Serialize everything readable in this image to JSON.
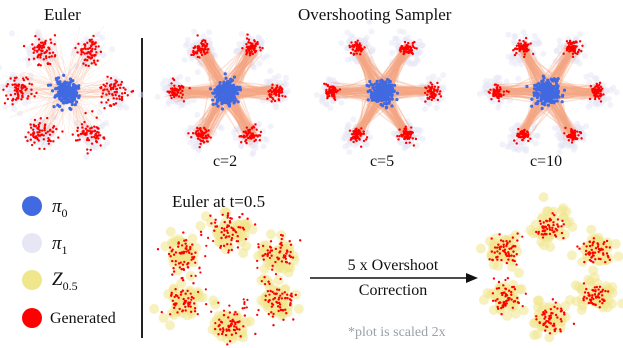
{
  "titles": {
    "euler": "Euler",
    "overshooting": "Overshooting Sampler",
    "euler_mid": "Euler at t=0.5"
  },
  "panel_labels": [
    "c=2",
    "c=5",
    "c=10"
  ],
  "legend": [
    {
      "label_base": "π",
      "label_sub": "0",
      "color": "#4169e1"
    },
    {
      "label_base": "π",
      "label_sub": "1",
      "color": "#e6e6f5"
    },
    {
      "label_base": "Z",
      "label_sub": "0.5",
      "color": "#f0e68c"
    },
    {
      "label_base": "Generated",
      "label_sub": "",
      "color": "#ff0000"
    }
  ],
  "arrow": {
    "line1": "5 x Overshoot",
    "line2": "Correction"
  },
  "note": "*plot is scaled 2x",
  "colors": {
    "pi0": "#4169e1",
    "pi1": "#e6e6f5",
    "z05": "#f0e68c",
    "generated": "#ff0000",
    "trajectory": "#f4a582"
  }
}
